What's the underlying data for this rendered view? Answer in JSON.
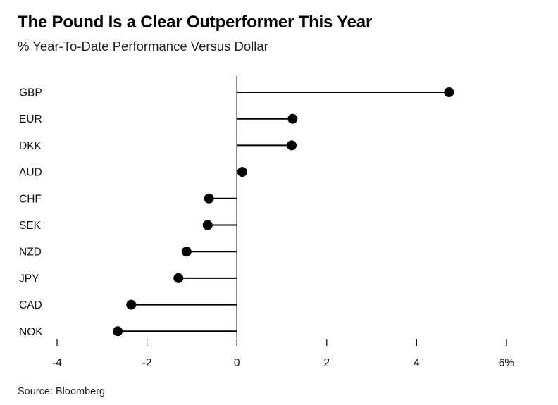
{
  "title": "The Pound Is a Clear Outperformer This Year",
  "subtitle": "% Year-To-Date Performance Versus Dollar",
  "source": "Source: Bloomberg",
  "chart_data": {
    "type": "lollipop",
    "categories": [
      "GBP",
      "EUR",
      "DKK",
      "AUD",
      "CHF",
      "SEK",
      "NZD",
      "JPY",
      "CAD",
      "NOK"
    ],
    "values": [
      4.72,
      1.24,
      1.22,
      0.12,
      -0.62,
      -0.65,
      -1.12,
      -1.3,
      -2.35,
      -2.65
    ],
    "xlim": [
      -4,
      6
    ],
    "xticks": [
      -4,
      -2,
      0,
      2,
      4,
      6
    ],
    "xtick_labels": [
      "-4",
      "-2",
      "0",
      "2",
      "4",
      "6%"
    ],
    "color": "#000000",
    "grid": false,
    "legend": "none"
  }
}
